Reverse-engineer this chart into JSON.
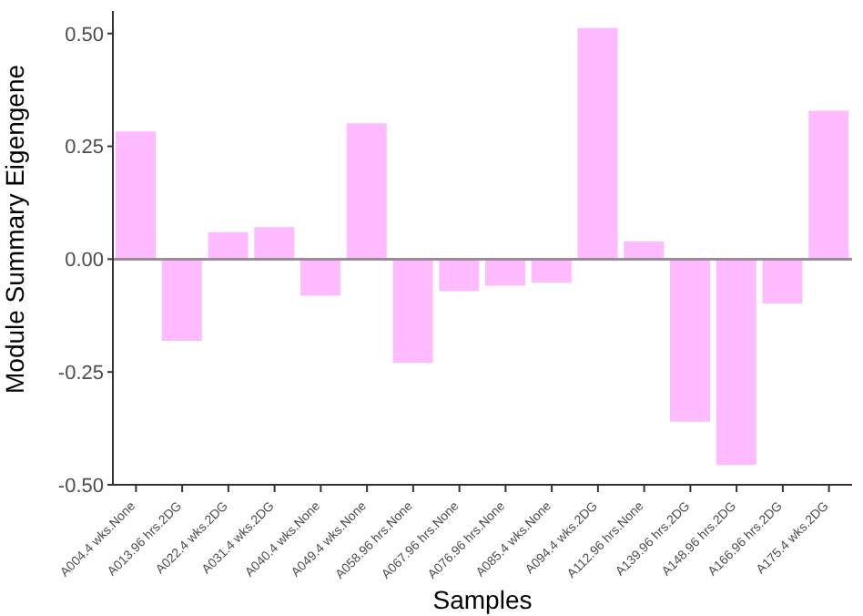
{
  "chart_data": {
    "type": "bar",
    "xlabel": "Samples",
    "ylabel": "Module Summary Eigengene",
    "categories": [
      "A004.4 wks.None",
      "A013.96 hrs.2DG",
      "A022.4 wks.2DG",
      "A031.4 wks.2DG",
      "A040.4 wks.None",
      "A049.4 wks.None",
      "A058.96 hrs.None",
      "A067.96 hrs.None",
      "A076.96 hrs.None",
      "A085.4 wks.None",
      "A094.4 wks.2DG",
      "A112.96 hrs.None",
      "A139.96 hrs.2DG",
      "A148.96 hrs.2DG",
      "A166.96 hrs.2DG",
      "A175.4 wks.2DG"
    ],
    "values": [
      0.283,
      -0.181,
      0.06,
      0.071,
      -0.081,
      0.301,
      -0.23,
      -0.071,
      -0.059,
      -0.052,
      0.512,
      0.039,
      -0.36,
      -0.456,
      -0.098,
      0.329
    ],
    "color": "#ffbbff",
    "ylim": [
      -0.5,
      0.55
    ],
    "yticks": [
      {
        "value": -0.5,
        "label": "-0.50"
      },
      {
        "value": -0.25,
        "label": "-0.25"
      },
      {
        "value": 0,
        "label": "0.00"
      },
      {
        "value": 0.25,
        "label": "0.25"
      },
      {
        "value": 0.5,
        "label": "0.50"
      }
    ],
    "ref_lines": [
      {
        "axis": "y",
        "value": 0,
        "color": "#9a8a9a"
      }
    ],
    "grid": false,
    "legend": false
  }
}
